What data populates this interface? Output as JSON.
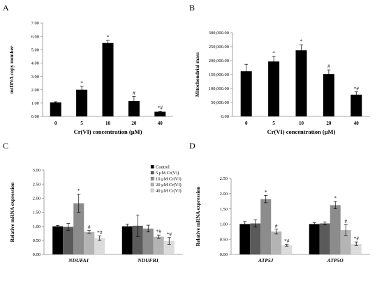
{
  "colors": {
    "control": "#000000",
    "c5": "#5a5a5a",
    "c10": "#8c8c8c",
    "c20": "#b4b4b4",
    "c40": "#dcdcdc",
    "axis": "#8c8c8c"
  },
  "chart_data": [
    {
      "panel": "A",
      "type": "bar",
      "ylabel": "mtDNA copy number",
      "xlabel": "Cr(VI) concentration (μM)",
      "ylim": [
        0,
        7
      ],
      "yticks": [
        "0.00",
        "1.00",
        "2.00",
        "3.00",
        "4.00",
        "5.00",
        "6.00",
        "7.00"
      ],
      "categories": [
        "0",
        "5",
        "10",
        "20",
        "40"
      ],
      "values": [
        1.05,
        2.0,
        5.5,
        1.15,
        0.35
      ],
      "errors": [
        0.05,
        0.25,
        0.2,
        0.35,
        0.05
      ],
      "marks": [
        "",
        "*",
        "*",
        "#",
        "*#"
      ]
    },
    {
      "panel": "B",
      "type": "bar",
      "ylabel": "Mitochondrial mass",
      "xlabel": "Cr(VI) concentration (μM)",
      "ylim": [
        0,
        300000
      ],
      "yticks": [
        "0.00",
        "50,000.00",
        "100,000.00",
        "150,000.00",
        "200,000.00",
        "250,000.00",
        "300,000.00"
      ],
      "categories": [
        "0",
        "5",
        "10",
        "20",
        "40"
      ],
      "values": [
        162000,
        197000,
        237000,
        152000,
        78000
      ],
      "errors": [
        25000,
        18000,
        20000,
        15000,
        10000
      ],
      "marks": [
        "",
        "*",
        "*",
        "#",
        "*#"
      ]
    },
    {
      "panel": "C",
      "type": "bar",
      "ylabel": "Relative mRNA expression",
      "ylim": [
        0,
        3
      ],
      "yticks": [
        "0.00",
        "0.50",
        "1.00",
        "1.50",
        "2.00",
        "2.50",
        "3.00"
      ],
      "categories": [
        "NDUFA1",
        "NDUFB1"
      ],
      "series": [
        {
          "name": "Control",
          "values": [
            1.0,
            1.0
          ],
          "errors": [
            0.03,
            0.08
          ],
          "marks": [
            "",
            ""
          ]
        },
        {
          "name": "5 μM Cr(VI)",
          "values": [
            0.98,
            1.02
          ],
          "errors": [
            0.12,
            0.38
          ],
          "marks": [
            "",
            ""
          ]
        },
        {
          "name": "10 μM Cr(VI)",
          "values": [
            1.82,
            0.92
          ],
          "errors": [
            0.32,
            0.12
          ],
          "marks": [
            "*",
            ""
          ]
        },
        {
          "name": "20 μM Cr(VI)",
          "values": [
            0.8,
            0.63
          ],
          "errors": [
            0.05,
            0.06
          ],
          "marks": [
            "#",
            "*#"
          ]
        },
        {
          "name": "40 μM Cr(VI)",
          "values": [
            0.58,
            0.48
          ],
          "errors": [
            0.08,
            0.12
          ],
          "marks": [
            "*#",
            "*#"
          ]
        }
      ]
    },
    {
      "panel": "D",
      "type": "bar",
      "ylabel": "Relative mRNA expression",
      "ylim": [
        0,
        2.5
      ],
      "yticks": [
        "0.00",
        "0.50",
        "1.00",
        "1.50",
        "2.00",
        "2.50"
      ],
      "categories": [
        "ATP5J",
        "ATP5O"
      ],
      "series": [
        {
          "values": [
            1.0,
            1.0
          ],
          "errors": [
            0.08,
            0.05
          ],
          "marks": [
            "",
            ""
          ]
        },
        {
          "values": [
            1.02,
            1.02
          ],
          "errors": [
            0.12,
            0.05
          ],
          "marks": [
            "",
            ""
          ]
        },
        {
          "values": [
            1.82,
            1.62
          ],
          "errors": [
            0.12,
            0.12
          ],
          "marks": [
            "*",
            "*"
          ]
        },
        {
          "values": [
            0.75,
            0.8
          ],
          "errors": [
            0.08,
            0.18
          ],
          "marks": [
            "#",
            "#"
          ]
        },
        {
          "values": [
            0.3,
            0.35
          ],
          "errors": [
            0.03,
            0.06
          ],
          "marks": [
            "*#",
            "*#"
          ]
        }
      ]
    }
  ]
}
